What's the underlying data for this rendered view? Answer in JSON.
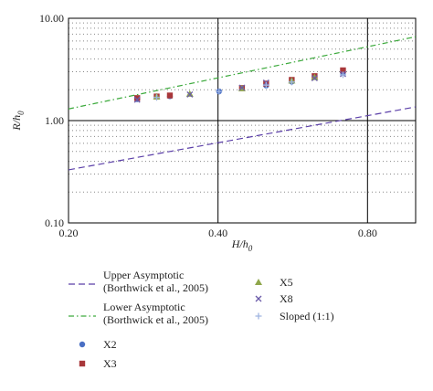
{
  "chart_data": {
    "type": "scatter",
    "xlabel": {
      "text": "H/h",
      "sub": "0"
    },
    "ylabel": {
      "text": "R/h",
      "sub": "0"
    },
    "xscale": "log",
    "yscale": "log",
    "xlim": [
      0.2,
      1.0
    ],
    "ylim": [
      0.1,
      10
    ],
    "xticks": [
      {
        "value": 0.2,
        "label": "0.20"
      },
      {
        "value": 0.4,
        "label": "0.40"
      },
      {
        "value": 0.8,
        "label": "0.80"
      }
    ],
    "yticks": [
      {
        "value": 0.1,
        "label": "0.10"
      },
      {
        "value": 1,
        "label": "1.00"
      },
      {
        "value": 10,
        "label": "10.00"
      }
    ],
    "yminor_ticks": [
      0.2,
      0.3,
      0.4,
      0.5,
      0.6,
      0.7,
      0.8,
      0.9,
      2,
      3,
      4,
      5,
      6,
      7,
      8,
      9
    ],
    "grid": true,
    "series": [
      {
        "name": "Upper Asymptotic (Borthwick et al., 2005)",
        "color": "#5b3fa8",
        "mode": "line",
        "dash": "7,4",
        "x": [
          0.2,
          1.0
        ],
        "values": [
          0.33,
          1.36
        ]
      },
      {
        "name": "Lower Asymptotic (Borthwick et al., 2005)",
        "color": "#3daa3d",
        "mode": "line",
        "dash": "6,3,1.5,3",
        "x": [
          0.2,
          1.0
        ],
        "values": [
          1.3,
          6.6
        ]
      },
      {
        "name": "X2",
        "color": "#4a6fc4",
        "mode": "circle",
        "x": [
          0.275,
          0.32,
          0.402,
          0.5,
          0.563,
          0.714
        ],
        "values": [
          1.62,
          1.73,
          1.93,
          2.2,
          2.4,
          2.95
        ]
      },
      {
        "name": "X3",
        "color": "#a8373a",
        "mode": "square",
        "x": [
          0.275,
          0.301,
          0.32,
          0.447,
          0.5,
          0.563,
          0.626,
          0.714
        ],
        "values": [
          1.66,
          1.72,
          1.76,
          2.08,
          2.3,
          2.5,
          2.72,
          3.1
        ]
      },
      {
        "name": "X5",
        "color": "#8fa64a",
        "mode": "triangle",
        "x": [
          0.301,
          0.351,
          0.447,
          0.563,
          0.626
        ],
        "values": [
          1.71,
          1.82,
          2.06,
          2.45,
          2.65
        ]
      },
      {
        "name": "X8",
        "color": "#6a5aa8",
        "mode": "cross",
        "x": [
          0.275,
          0.351,
          0.447,
          0.5,
          0.626,
          0.714
        ],
        "values": [
          1.6,
          1.8,
          2.1,
          2.35,
          2.6,
          2.85
        ]
      },
      {
        "name": "Sloped (1:1)",
        "color": "#9fb4e0",
        "mode": "plus",
        "x": [
          0.301,
          0.402,
          0.5,
          0.563,
          0.714
        ],
        "values": [
          1.68,
          1.92,
          2.22,
          2.38,
          2.8
        ]
      }
    ]
  }
}
